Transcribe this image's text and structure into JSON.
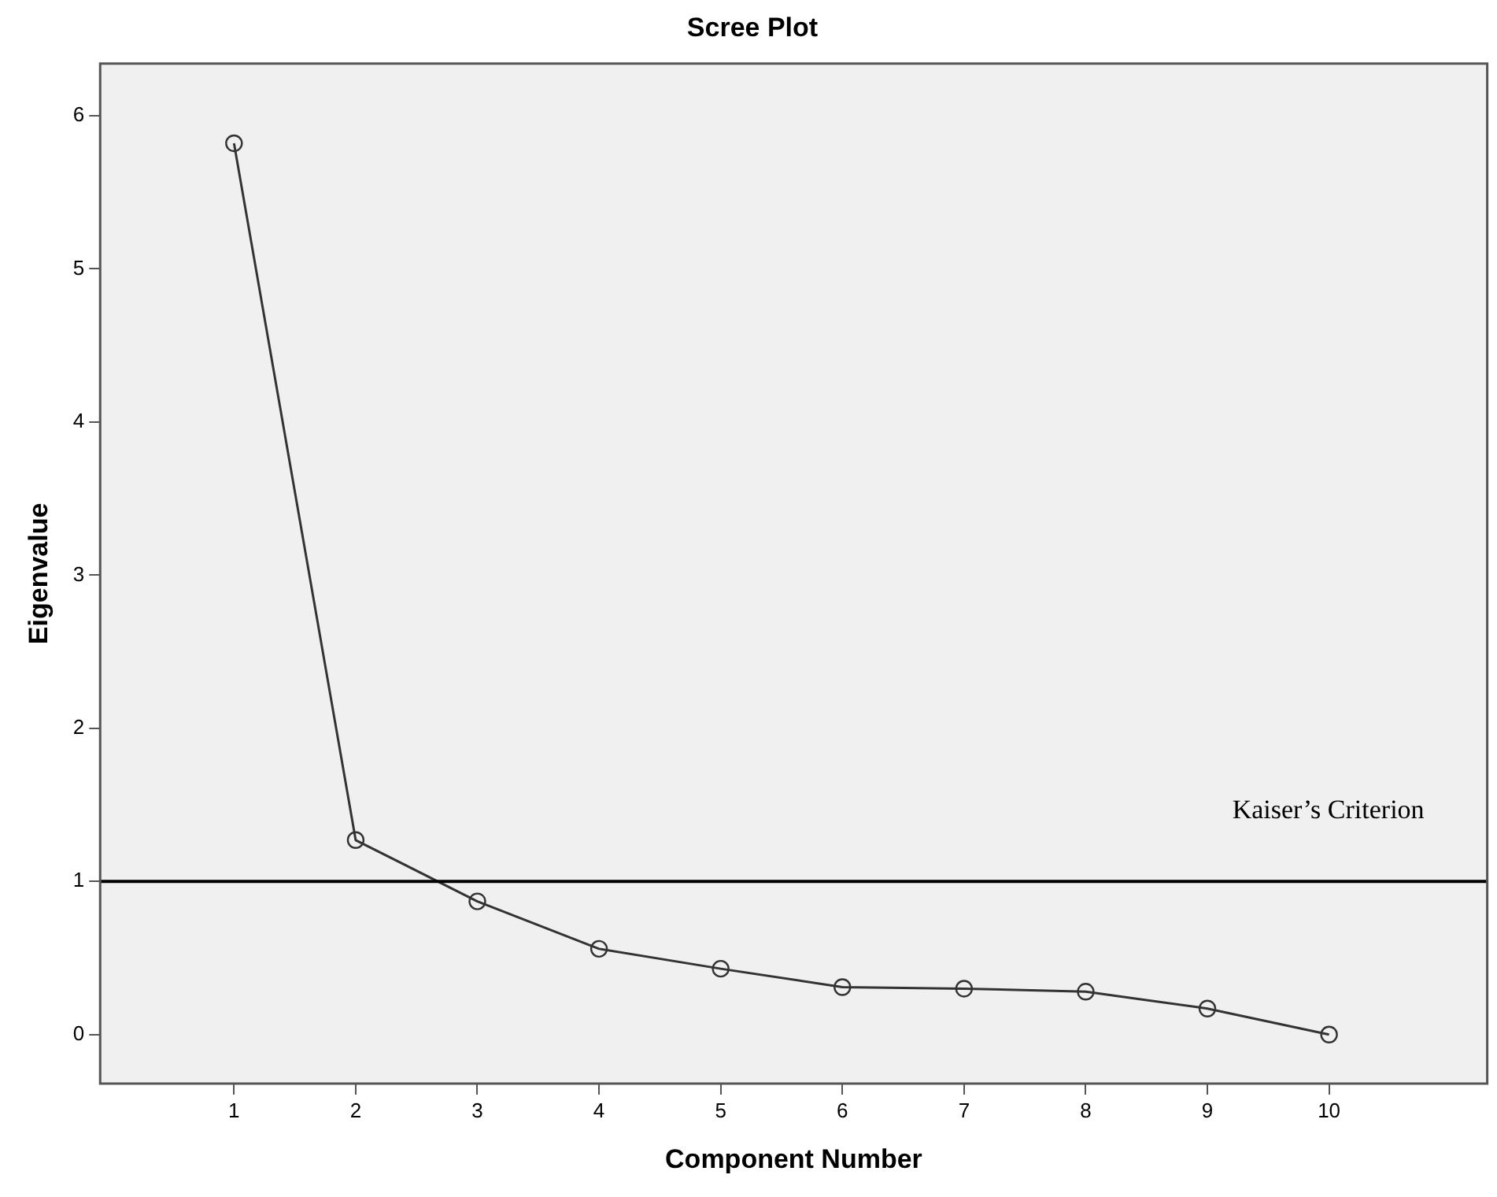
{
  "chart_data": {
    "type": "line",
    "title": "Scree Plot",
    "xlabel": "Component Number",
    "ylabel": "Eigenvalue",
    "x": [
      1,
      2,
      3,
      4,
      5,
      6,
      7,
      8,
      9,
      10
    ],
    "series": [
      {
        "color": "#333333",
        "values": [
          5.82,
          1.27,
          0.87,
          0.56,
          0.43,
          0.31,
          0.3,
          0.28,
          0.17,
          0.0
        ]
      }
    ],
    "xlim": [
      -0.1,
      11.3
    ],
    "xticks": [
      1,
      2,
      3,
      4,
      5,
      6,
      7,
      8,
      9,
      10
    ],
    "ylim": [
      -0.32,
      6.34
    ],
    "yticks": [
      0,
      1,
      2,
      3,
      4,
      5,
      6
    ],
    "ref_lines": [
      {
        "axis": "y",
        "value": 1,
        "label": "Kaiser’s Criterion",
        "color": "#000000"
      }
    ],
    "grid": false,
    "legend": false,
    "marker": "circle",
    "line_style": "solid"
  }
}
